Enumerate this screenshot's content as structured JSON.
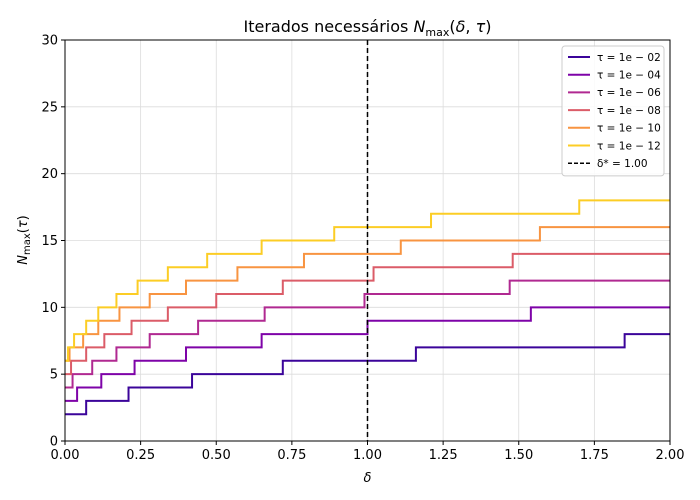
{
  "chart_data": {
    "type": "line",
    "title": "Iterados necessários N_max(δ, τ)",
    "xlabel": "δ",
    "ylabel": "N_max(τ)",
    "xlim": [
      0,
      2
    ],
    "ylim": [
      0,
      30
    ],
    "xticks": [
      "0.00",
      "0.25",
      "0.50",
      "0.75",
      "1.00",
      "1.25",
      "1.50",
      "1.75",
      "2.00"
    ],
    "yticks": [
      "0",
      "5",
      "10",
      "15",
      "20",
      "25",
      "30"
    ],
    "grid": true,
    "legend_position": "top-right",
    "step": "post",
    "series": [
      {
        "name": "τ = 1e − 02",
        "color": "#3b049a",
        "x": [
          0,
          0.07,
          0.21,
          0.42,
          0.72,
          1.16,
          1.85,
          2.0
        ],
        "y": [
          2,
          3,
          4,
          5,
          6,
          7,
          8,
          8
        ]
      },
      {
        "name": "τ = 1e − 04",
        "color": "#7e03a8",
        "x": [
          0,
          0.04,
          0.12,
          0.23,
          0.4,
          0.65,
          1.0,
          1.54,
          2.0
        ],
        "y": [
          3,
          4,
          5,
          6,
          7,
          8,
          9,
          10,
          10
        ]
      },
      {
        "name": "τ = 1e − 06",
        "color": "#b02991",
        "x": [
          0,
          0.025,
          0.09,
          0.17,
          0.28,
          0.44,
          0.66,
          0.99,
          1.47,
          2.0
        ],
        "y": [
          4,
          5,
          6,
          7,
          8,
          9,
          10,
          11,
          12,
          12
        ]
      },
      {
        "name": "τ = 1e − 08",
        "color": "#db5c68",
        "x": [
          0,
          0.02,
          0.07,
          0.13,
          0.22,
          0.34,
          0.5,
          0.72,
          1.02,
          1.48,
          2.0
        ],
        "y": [
          5,
          6,
          7,
          8,
          9,
          10,
          11,
          12,
          13,
          14,
          14
        ]
      },
      {
        "name": "τ = 1e − 10",
        "color": "#f89441",
        "x": [
          0,
          0.015,
          0.06,
          0.11,
          0.18,
          0.28,
          0.4,
          0.57,
          0.79,
          1.11,
          1.57,
          2.0
        ],
        "y": [
          6,
          7,
          8,
          9,
          10,
          11,
          12,
          13,
          14,
          15,
          16,
          16
        ]
      },
      {
        "name": "τ = 1e − 12",
        "color": "#fccd25",
        "x": [
          0,
          0.01,
          0.03,
          0.07,
          0.11,
          0.17,
          0.24,
          0.34,
          0.47,
          0.65,
          0.89,
          1.21,
          1.7,
          2.0
        ],
        "y": [
          6,
          7,
          8,
          9,
          10,
          11,
          12,
          13,
          14,
          15,
          16,
          17,
          18,
          18
        ]
      }
    ],
    "vline": {
      "name": "δ* = 1.00",
      "x": 1.0,
      "color": "#000000",
      "style": "dashed"
    }
  }
}
